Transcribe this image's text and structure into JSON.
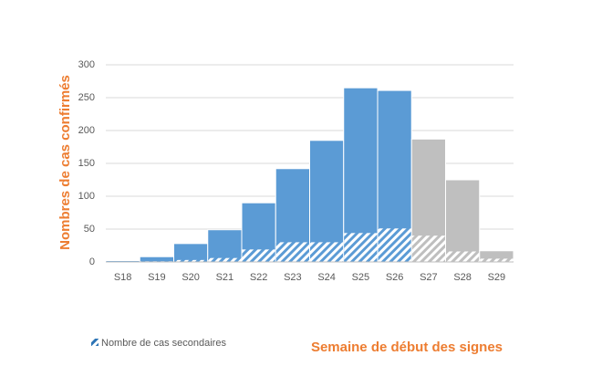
{
  "chart_data": {
    "type": "bar",
    "y_label": "Nombres de cas confirmés",
    "x_label": "Semaine de début des signes",
    "categories": [
      "S18",
      "S19",
      "S20",
      "S21",
      "S22",
      "S23",
      "S24",
      "S25",
      "S26",
      "S27",
      "S28",
      "S29"
    ],
    "values": [
      2,
      8,
      28,
      49,
      90,
      142,
      185,
      265,
      261,
      187,
      125,
      17
    ],
    "colors": [
      "#5b9bd5",
      "#5b9bd5",
      "#5b9bd5",
      "#5b9bd5",
      "#5b9bd5",
      "#5b9bd5",
      "#5b9bd5",
      "#5b9bd5",
      "#5b9bd5",
      "#bfbfbf",
      "#bfbfbf",
      "#bfbfbf"
    ],
    "hatched_series": {
      "name": "Nombre de cas secondaires",
      "color": "#2e75b6",
      "values": [
        0,
        1,
        3,
        6,
        19,
        30,
        30,
        44,
        51,
        40,
        16,
        5
      ]
    },
    "ylim": [
      0,
      300
    ],
    "yticks": [
      0,
      50,
      100,
      150,
      200,
      250,
      300
    ],
    "grid": true
  }
}
